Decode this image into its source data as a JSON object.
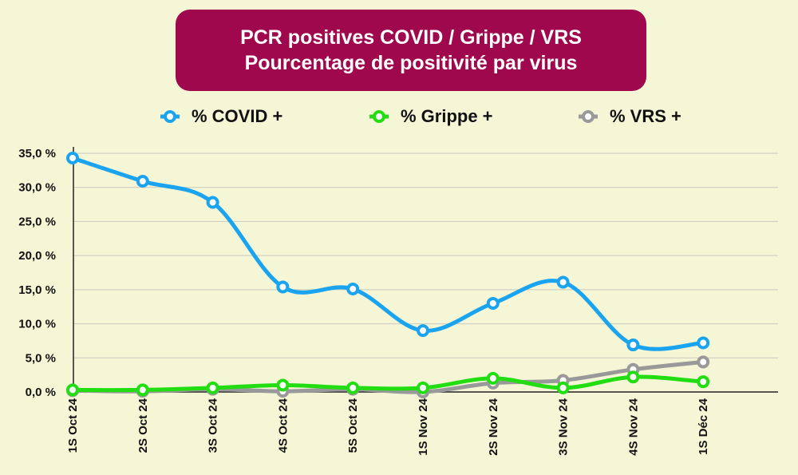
{
  "chart_data": {
    "type": "line",
    "title_line1": "PCR positives COVID / Grippe / VRS",
    "title_line2": "Pourcentage de positivité par virus",
    "categories": [
      "1S Oct 24",
      "2S Oct 24",
      "3S Oct 24",
      "4S Oct 24",
      "5S Oct 24",
      "1S Nov 24",
      "2S Nov 24",
      "3S Nov 24",
      "4S Nov 24",
      "1S Déc 24"
    ],
    "ylim": [
      0,
      35
    ],
    "yticks": [
      0,
      5,
      10,
      15,
      20,
      25,
      30,
      35
    ],
    "ytick_labels": [
      "0,0 %",
      "5,0 %",
      "10,0 %",
      "15,0 %",
      "20,0 %",
      "25,0 %",
      "30,0 %",
      "35,0 %"
    ],
    "grid": true,
    "legend_position": "top",
    "series": [
      {
        "name": "% COVID +",
        "color": "#1aa3ee",
        "values": [
          34.3,
          30.9,
          27.8,
          15.4,
          15.1,
          9.0,
          13.0,
          16.1,
          6.9,
          7.2
        ]
      },
      {
        "name": "% Grippe +",
        "color": "#22dd11",
        "values": [
          0.3,
          0.3,
          0.6,
          1.0,
          0.6,
          0.6,
          2.0,
          0.6,
          2.2,
          1.5
        ]
      },
      {
        "name": "% VRS +",
        "color": "#999999",
        "values": [
          0.2,
          0.1,
          0.4,
          0.1,
          0.4,
          0.0,
          1.3,
          1.7,
          3.3,
          4.4
        ]
      }
    ]
  }
}
